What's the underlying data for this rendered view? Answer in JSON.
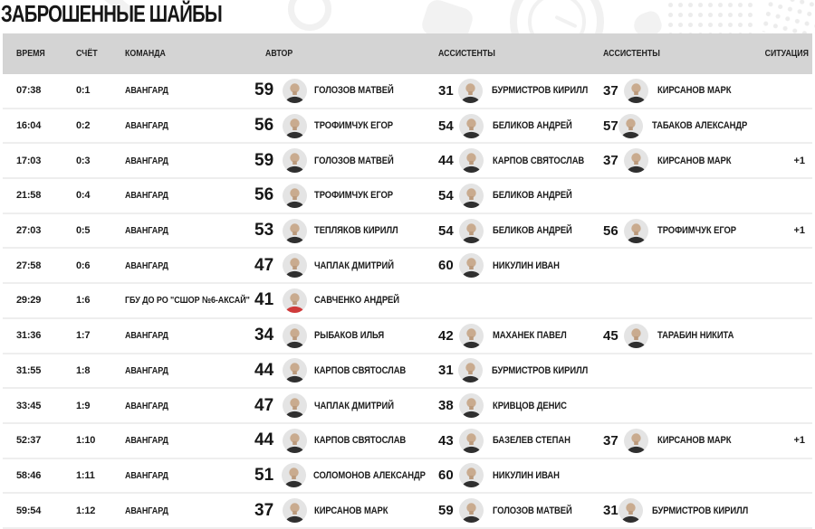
{
  "title": "ЗАБРОШЕННЫЕ ШАЙБЫ",
  "colors": {
    "header_bg": "#d4d4d4",
    "row_border": "#eeeeee",
    "text": "#1b1b1b",
    "avatar_bg": "#e4e4e4",
    "skin": "#c9ab8f",
    "jersey_dark": "#2f2f2f",
    "jersey_red": "#cf3a3a",
    "pattern": "#f1f1f1"
  },
  "table": {
    "headers": [
      "ВРЕМЯ",
      "СЧЁТ",
      "КОМАНДА",
      "АВТОР",
      "АССИСТЕНТЫ",
      "АССИСТЕНТЫ",
      "СИТУАЦИЯ"
    ],
    "rows": [
      {
        "time": "07:38",
        "score": "0:1",
        "team": "АВАНГАРД",
        "author": {
          "number": "59",
          "name": "ГОЛОЗОВ МАТВЕЙ"
        },
        "assist1": {
          "number": "31",
          "name": "БУРМИСТРОВ КИРИЛЛ"
        },
        "assist2": {
          "number": "37",
          "name": "КИРСАНОВ МАРК"
        },
        "situation": ""
      },
      {
        "time": "16:04",
        "score": "0:2",
        "team": "АВАНГАРД",
        "author": {
          "number": "56",
          "name": "ТРОФИМЧУК ЕГОР"
        },
        "assist1": {
          "number": "54",
          "name": "БЕЛИКОВ АНДРЕЙ"
        },
        "assist2": {
          "number": "57",
          "name": "ТАБАКОВ АЛЕКСАНДР"
        },
        "situation": ""
      },
      {
        "time": "17:03",
        "score": "0:3",
        "team": "АВАНГАРД",
        "author": {
          "number": "59",
          "name": "ГОЛОЗОВ МАТВЕЙ"
        },
        "assist1": {
          "number": "44",
          "name": "КАРПОВ СВЯТОСЛАВ"
        },
        "assist2": {
          "number": "37",
          "name": "КИРСАНОВ МАРК"
        },
        "situation": "+1"
      },
      {
        "time": "21:58",
        "score": "0:4",
        "team": "АВАНГАРД",
        "author": {
          "number": "56",
          "name": "ТРОФИМЧУК ЕГОР"
        },
        "assist1": {
          "number": "54",
          "name": "БЕЛИКОВ АНДРЕЙ"
        },
        "assist2": null,
        "situation": ""
      },
      {
        "time": "27:03",
        "score": "0:5",
        "team": "АВАНГАРД",
        "author": {
          "number": "53",
          "name": "ТЕПЛЯКОВ КИРИЛЛ"
        },
        "assist1": {
          "number": "54",
          "name": "БЕЛИКОВ АНДРЕЙ"
        },
        "assist2": {
          "number": "56",
          "name": "ТРОФИМЧУК ЕГОР"
        },
        "situation": "+1"
      },
      {
        "time": "27:58",
        "score": "0:6",
        "team": "АВАНГАРД",
        "author": {
          "number": "47",
          "name": "ЧАПЛАК ДМИТРИЙ"
        },
        "assist1": {
          "number": "60",
          "name": "НИКУЛИН ИВАН"
        },
        "assist2": null,
        "situation": ""
      },
      {
        "time": "29:29",
        "score": "1:6",
        "team": "ГБУ ДО РО \"СШОР №6-АКСАЙ\"",
        "author": {
          "number": "41",
          "name": "САВЧЕНКО АНДРЕЙ",
          "jersey": "red"
        },
        "assist1": null,
        "assist2": null,
        "situation": ""
      },
      {
        "time": "31:36",
        "score": "1:7",
        "team": "АВАНГАРД",
        "author": {
          "number": "34",
          "name": "РЫБАКОВ ИЛЬЯ"
        },
        "assist1": {
          "number": "42",
          "name": "МАХАНЕК ПАВЕЛ"
        },
        "assist2": {
          "number": "45",
          "name": "ТАРАБИН НИКИТА"
        },
        "situation": ""
      },
      {
        "time": "31:55",
        "score": "1:8",
        "team": "АВАНГАРД",
        "author": {
          "number": "44",
          "name": "КАРПОВ СВЯТОСЛАВ"
        },
        "assist1": {
          "number": "31",
          "name": "БУРМИСТРОВ КИРИЛЛ"
        },
        "assist2": null,
        "situation": ""
      },
      {
        "time": "33:45",
        "score": "1:9",
        "team": "АВАНГАРД",
        "author": {
          "number": "47",
          "name": "ЧАПЛАК ДМИТРИЙ"
        },
        "assist1": {
          "number": "38",
          "name": "КРИВЦОВ ДЕНИС"
        },
        "assist2": null,
        "situation": ""
      },
      {
        "time": "52:37",
        "score": "1:10",
        "team": "АВАНГАРД",
        "author": {
          "number": "44",
          "name": "КАРПОВ СВЯТОСЛАВ"
        },
        "assist1": {
          "number": "43",
          "name": "БАЗЕЛЕВ СТЕПАН"
        },
        "assist2": {
          "number": "37",
          "name": "КИРСАНОВ МАРК"
        },
        "situation": "+1"
      },
      {
        "time": "58:46",
        "score": "1:11",
        "team": "АВАНГАРД",
        "author": {
          "number": "51",
          "name": "СОЛОМОНОВ АЛЕКСАНДР"
        },
        "assist1": {
          "number": "60",
          "name": "НИКУЛИН ИВАН"
        },
        "assist2": null,
        "situation": ""
      },
      {
        "time": "59:54",
        "score": "1:12",
        "team": "АВАНГАРД",
        "author": {
          "number": "37",
          "name": "КИРСАНОВ МАРК"
        },
        "assist1": {
          "number": "59",
          "name": "ГОЛОЗОВ МАТВЕЙ"
        },
        "assist2": {
          "number": "31",
          "name": "БУРМИСТРОВ КИРИЛЛ"
        },
        "situation": ""
      }
    ]
  }
}
